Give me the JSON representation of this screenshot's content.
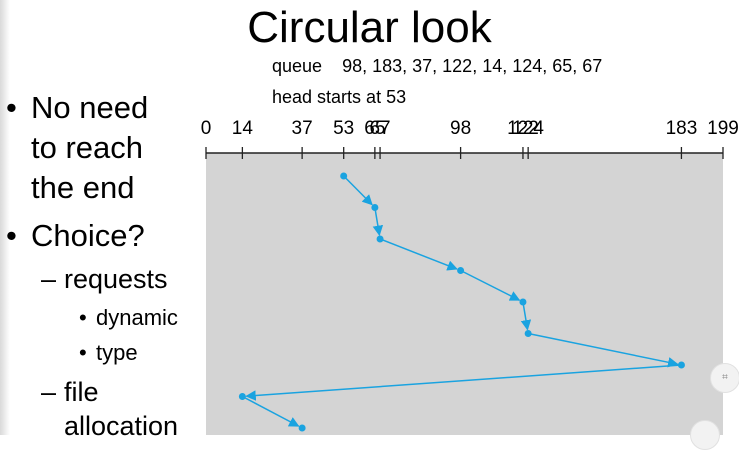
{
  "title": "Circular look",
  "queue": {
    "label": "queue",
    "values": "98, 183, 37, 122, 14, 124, 65, 67"
  },
  "head": "head starts at 53",
  "bullets": [
    {
      "level": 1,
      "mark": "•",
      "lines": [
        "No need",
        "to reach",
        "the end"
      ]
    },
    {
      "level": 1,
      "mark": "•",
      "lines": [
        "Choice?"
      ]
    },
    {
      "level": 2,
      "mark": "–",
      "lines": [
        "requests"
      ]
    },
    {
      "level": 3,
      "mark": "•",
      "lines": [
        "dynamic"
      ]
    },
    {
      "level": 3,
      "mark": "•",
      "lines": [
        "type"
      ]
    },
    {
      "level": 2,
      "mark": "–",
      "lines": [
        "file",
        "allocation"
      ]
    }
  ],
  "axis": {
    "min": 0,
    "max": 199,
    "ticks": [
      0,
      14,
      37,
      53,
      65,
      67,
      98,
      122,
      124,
      183,
      199
    ]
  },
  "sequence": [
    53,
    65,
    67,
    98,
    122,
    124,
    183,
    14,
    37
  ],
  "colors": {
    "path": "#1aa3e0",
    "panel": "#d4d4d4"
  },
  "icons": {
    "corner_button": "expand-icon"
  }
}
